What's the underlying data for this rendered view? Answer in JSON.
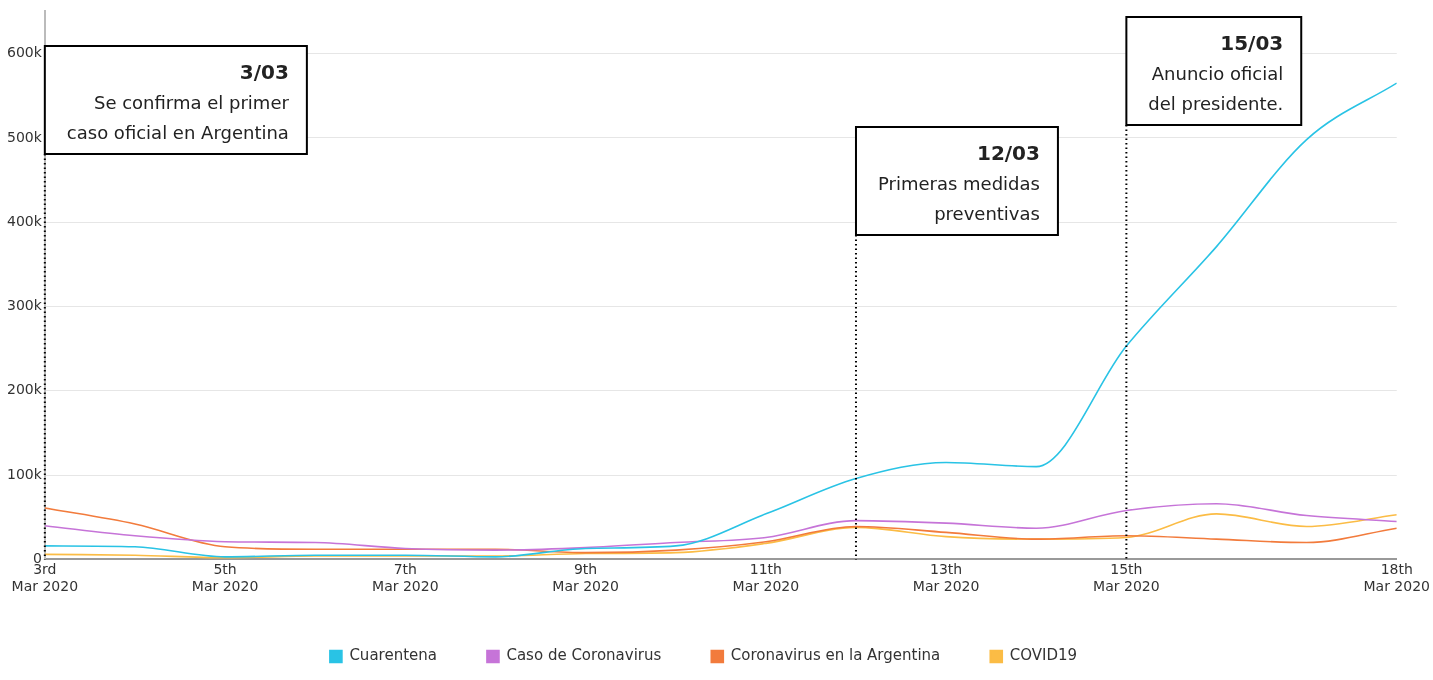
{
  "chart_data": {
    "type": "line",
    "x": [
      "2020-03-03",
      "2020-03-04",
      "2020-03-05",
      "2020-03-06",
      "2020-03-07",
      "2020-03-08",
      "2020-03-09",
      "2020-03-10",
      "2020-03-11",
      "2020-03-12",
      "2020-03-13",
      "2020-03-14",
      "2020-03-15",
      "2020-03-16",
      "2020-03-17",
      "2020-03-18"
    ],
    "series": [
      {
        "name": "Cuarentena",
        "color": "#29c3e5",
        "values": [
          16000,
          15000,
          3000,
          5000,
          5000,
          3000,
          13000,
          16000,
          54000,
          96000,
          115000,
          110000,
          253000,
          371000,
          498000,
          565000
        ]
      },
      {
        "name": "Caso de Coronavirus",
        "color": "#c674d8",
        "values": [
          40000,
          28000,
          21000,
          20000,
          13000,
          11000,
          14000,
          20000,
          26000,
          46000,
          43000,
          37000,
          58000,
          66000,
          52000,
          45000
        ]
      },
      {
        "name": "Coronavirus en la Argentina",
        "color": "#f27b3c",
        "values": [
          61000,
          42000,
          15000,
          12000,
          12000,
          12000,
          8000,
          11000,
          21000,
          39000,
          32000,
          24000,
          28000,
          24000,
          20000,
          37000
        ]
      },
      {
        "name": "COVID19",
        "color": "#fbbc45",
        "values": [
          6000,
          5000,
          2000,
          4000,
          4000,
          4000,
          7000,
          8000,
          19000,
          38000,
          27000,
          24000,
          26000,
          54000,
          39000,
          53000
        ]
      }
    ],
    "xlim": [
      "2020-03-03",
      "2020-03-18"
    ],
    "xticks": [
      {
        "value": "2020-03-03",
        "label": "3rd\nMar 2020"
      },
      {
        "value": "2020-03-05",
        "label": "5th\nMar 2020"
      },
      {
        "value": "2020-03-07",
        "label": "7th\nMar 2020"
      },
      {
        "value": "2020-03-09",
        "label": "9th\nMar 2020"
      },
      {
        "value": "2020-03-11",
        "label": "11th\nMar 2020"
      },
      {
        "value": "2020-03-13",
        "label": "13th\nMar 2020"
      },
      {
        "value": "2020-03-15",
        "label": "15th\nMar 2020"
      },
      {
        "value": "2020-03-18",
        "label": "18th\nMar 2020"
      }
    ],
    "ylim": [
      0,
      650000
    ],
    "yticks": [
      0,
      {
        "value": 100000,
        "label": "100k"
      },
      {
        "value": 200000,
        "label": "200k"
      },
      {
        "value": 300000,
        "label": "300k"
      },
      {
        "value": 400000,
        "label": "400k"
      },
      {
        "value": 500000,
        "label": "500k"
      },
      {
        "value": 600000,
        "label": "600k"
      }
    ],
    "ref_lines": [
      {
        "axis": "x",
        "value": "2020-03-03",
        "label": "3/03\nSe confirma el primer\ncaso oficial en Argentina",
        "line_style": "dotted",
        "color": "#000000"
      },
      {
        "axis": "x",
        "value": "2020-03-12",
        "label": "12/03\nPrimeras medidas\npreventivas",
        "line_style": "dotted",
        "color": "#000000"
      },
      {
        "axis": "x",
        "value": "2020-03-15",
        "label": "15/03\nAnuncio oficial\ndel presidente.",
        "line_style": "dotted",
        "color": "#000000"
      }
    ],
    "grid": "y",
    "legend": "bottom",
    "marker": "none",
    "line_style": "solid"
  }
}
